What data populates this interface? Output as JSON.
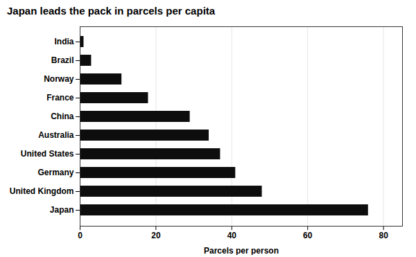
{
  "chart_data": {
    "type": "bar",
    "orientation": "horizontal",
    "title": "Japan leads the pack in parcels per capita",
    "xlabel": "Parcels per person",
    "categories": [
      "Japan",
      "United Kingdom",
      "Germany",
      "United States",
      "Australia",
      "China",
      "France",
      "Norway",
      "Brazil",
      "India"
    ],
    "values": [
      76,
      48,
      41,
      37,
      34,
      29,
      18,
      11,
      3,
      1
    ],
    "color": "#0d0d0d",
    "xlim": [
      0,
      85
    ],
    "xticks": [
      0,
      20,
      40,
      60,
      80
    ],
    "grid": true
  }
}
